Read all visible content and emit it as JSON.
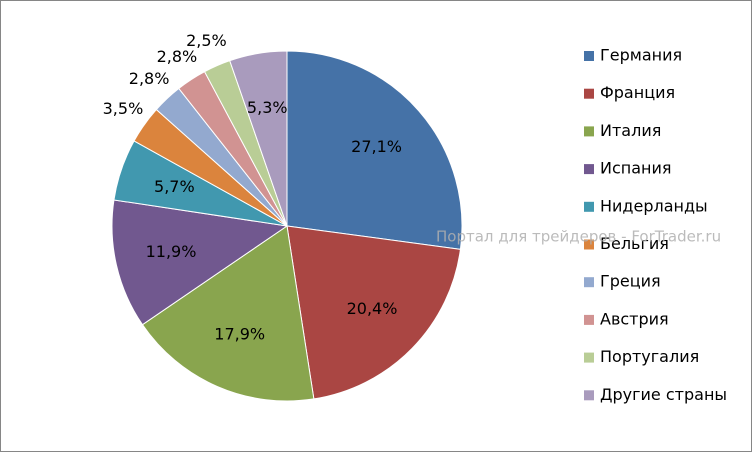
{
  "chart_data": {
    "type": "pie",
    "categories": [
      "Германия",
      "Франция",
      "Италия",
      "Испания",
      "Нидерланды",
      "Бельгия",
      "Греция",
      "Австрия",
      "Португалия",
      "Другие страны"
    ],
    "values": [
      27.1,
      20.4,
      17.9,
      11.9,
      5.7,
      3.5,
      2.8,
      2.8,
      2.5,
      5.3
    ],
    "value_labels": [
      "27,1%",
      "20,4%",
      "17,9%",
      "11,9%",
      "5,7%",
      "3,5%",
      "2,8%",
      "2,8%",
      "2,5%",
      "5,3%"
    ],
    "colors": [
      "#4572a7",
      "#aa4643",
      "#89a54e",
      "#71588f",
      "#4198af",
      "#db843d",
      "#93a9cf",
      "#d19392",
      "#b9cd96",
      "#a99bbd"
    ],
    "legend": "right",
    "watermark": "Портал для трейдеров - ForTrader.ru"
  }
}
